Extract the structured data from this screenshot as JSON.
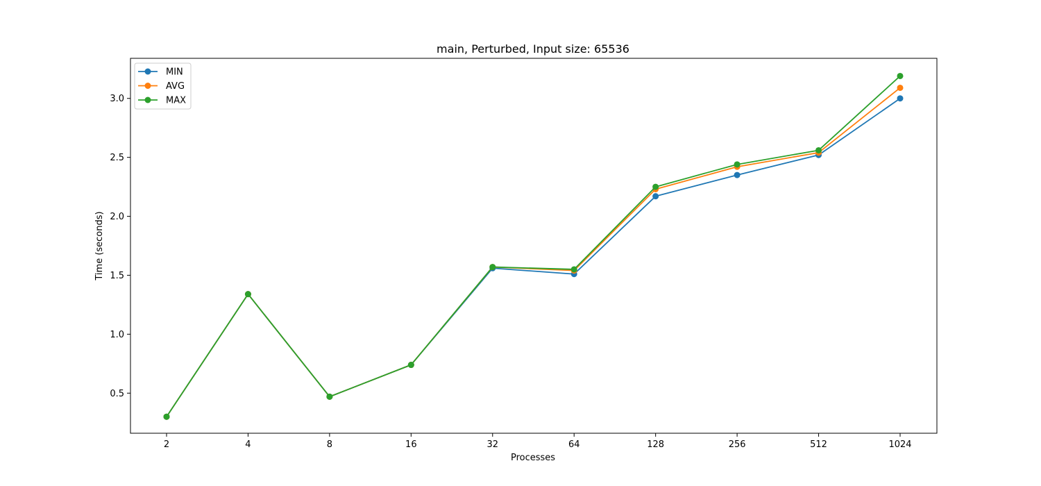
{
  "chart_data": {
    "type": "line",
    "title": "main, Perturbed, Input size: 65536",
    "xlabel": "Processes",
    "ylabel": "Time (seconds)",
    "categories": [
      "2",
      "4",
      "8",
      "16",
      "32",
      "64",
      "128",
      "256",
      "512",
      "1024"
    ],
    "ylim": [
      0.16,
      3.34
    ],
    "yticks": [
      "0.5",
      "1.0",
      "1.5",
      "2.0",
      "2.5",
      "3.0"
    ],
    "grid": false,
    "legend_position": "top-left",
    "series": [
      {
        "name": "MIN",
        "color": "#1f77b4",
        "values": [
          0.3,
          1.34,
          0.47,
          0.74,
          1.56,
          1.51,
          2.17,
          2.35,
          2.52,
          3.0
        ]
      },
      {
        "name": "AVG",
        "color": "#ff7f0e",
        "values": [
          0.3,
          1.34,
          0.47,
          0.74,
          1.57,
          1.54,
          2.23,
          2.42,
          2.54,
          3.09
        ]
      },
      {
        "name": "MAX",
        "color": "#2ca02c",
        "values": [
          0.3,
          1.34,
          0.47,
          0.74,
          1.57,
          1.55,
          2.25,
          2.44,
          2.56,
          3.19
        ]
      }
    ]
  }
}
